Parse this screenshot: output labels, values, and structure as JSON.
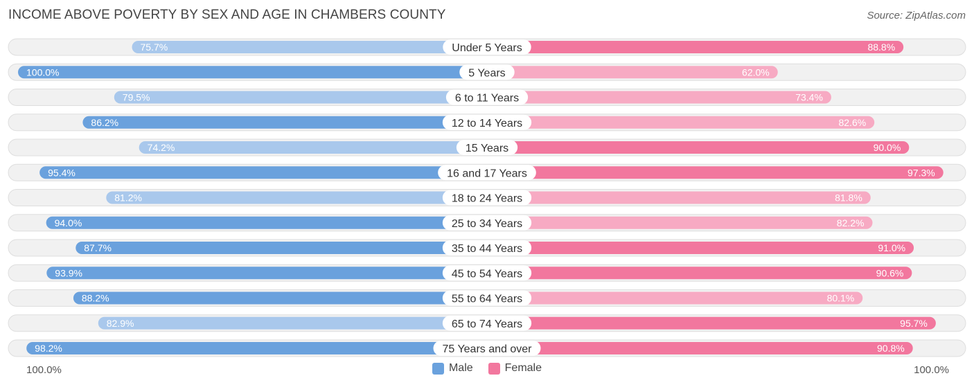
{
  "title": "INCOME ABOVE POVERTY BY SEX AND AGE IN CHAMBERS COUNTY",
  "source": "Source: ZipAtlas.com",
  "axis": {
    "left_label": "100.0%",
    "right_label": "100.0%"
  },
  "legend": {
    "male": "Male",
    "female": "Female"
  },
  "colors": {
    "male_strong": "#6aa1dd",
    "male_light": "#a9c8ec",
    "female_strong": "#f2779e",
    "female_light": "#f7aac3"
  },
  "chart_data": {
    "type": "bar",
    "orientation": "horizontal-diverging",
    "title": "INCOME ABOVE POVERTY BY SEX AND AGE IN CHAMBERS COUNTY",
    "xlim": [
      0,
      100
    ],
    "categories": [
      "Under 5 Years",
      "5 Years",
      "6 to 11 Years",
      "12 to 14 Years",
      "15 Years",
      "16 and 17 Years",
      "18 to 24 Years",
      "25 to 34 Years",
      "35 to 44 Years",
      "45 to 54 Years",
      "55 to 64 Years",
      "65 to 74 Years",
      "75 Years and over"
    ],
    "series": [
      {
        "name": "Male",
        "values": [
          75.7,
          100.0,
          79.5,
          86.2,
          74.2,
          95.4,
          81.2,
          94.0,
          87.7,
          93.9,
          88.2,
          82.9,
          98.2
        ],
        "labels": [
          "75.7%",
          "100.0%",
          "79.5%",
          "86.2%",
          "74.2%",
          "95.4%",
          "81.2%",
          "94.0%",
          "87.7%",
          "93.9%",
          "88.2%",
          "82.9%",
          "98.2%"
        ]
      },
      {
        "name": "Female",
        "values": [
          88.8,
          62.0,
          73.4,
          82.6,
          90.0,
          97.3,
          81.8,
          82.2,
          91.0,
          90.6,
          80.1,
          95.7,
          90.8
        ],
        "labels": [
          "88.8%",
          "62.0%",
          "73.4%",
          "82.6%",
          "90.0%",
          "97.3%",
          "81.8%",
          "82.2%",
          "91.0%",
          "90.6%",
          "80.1%",
          "95.7%",
          "90.8%"
        ]
      }
    ]
  }
}
